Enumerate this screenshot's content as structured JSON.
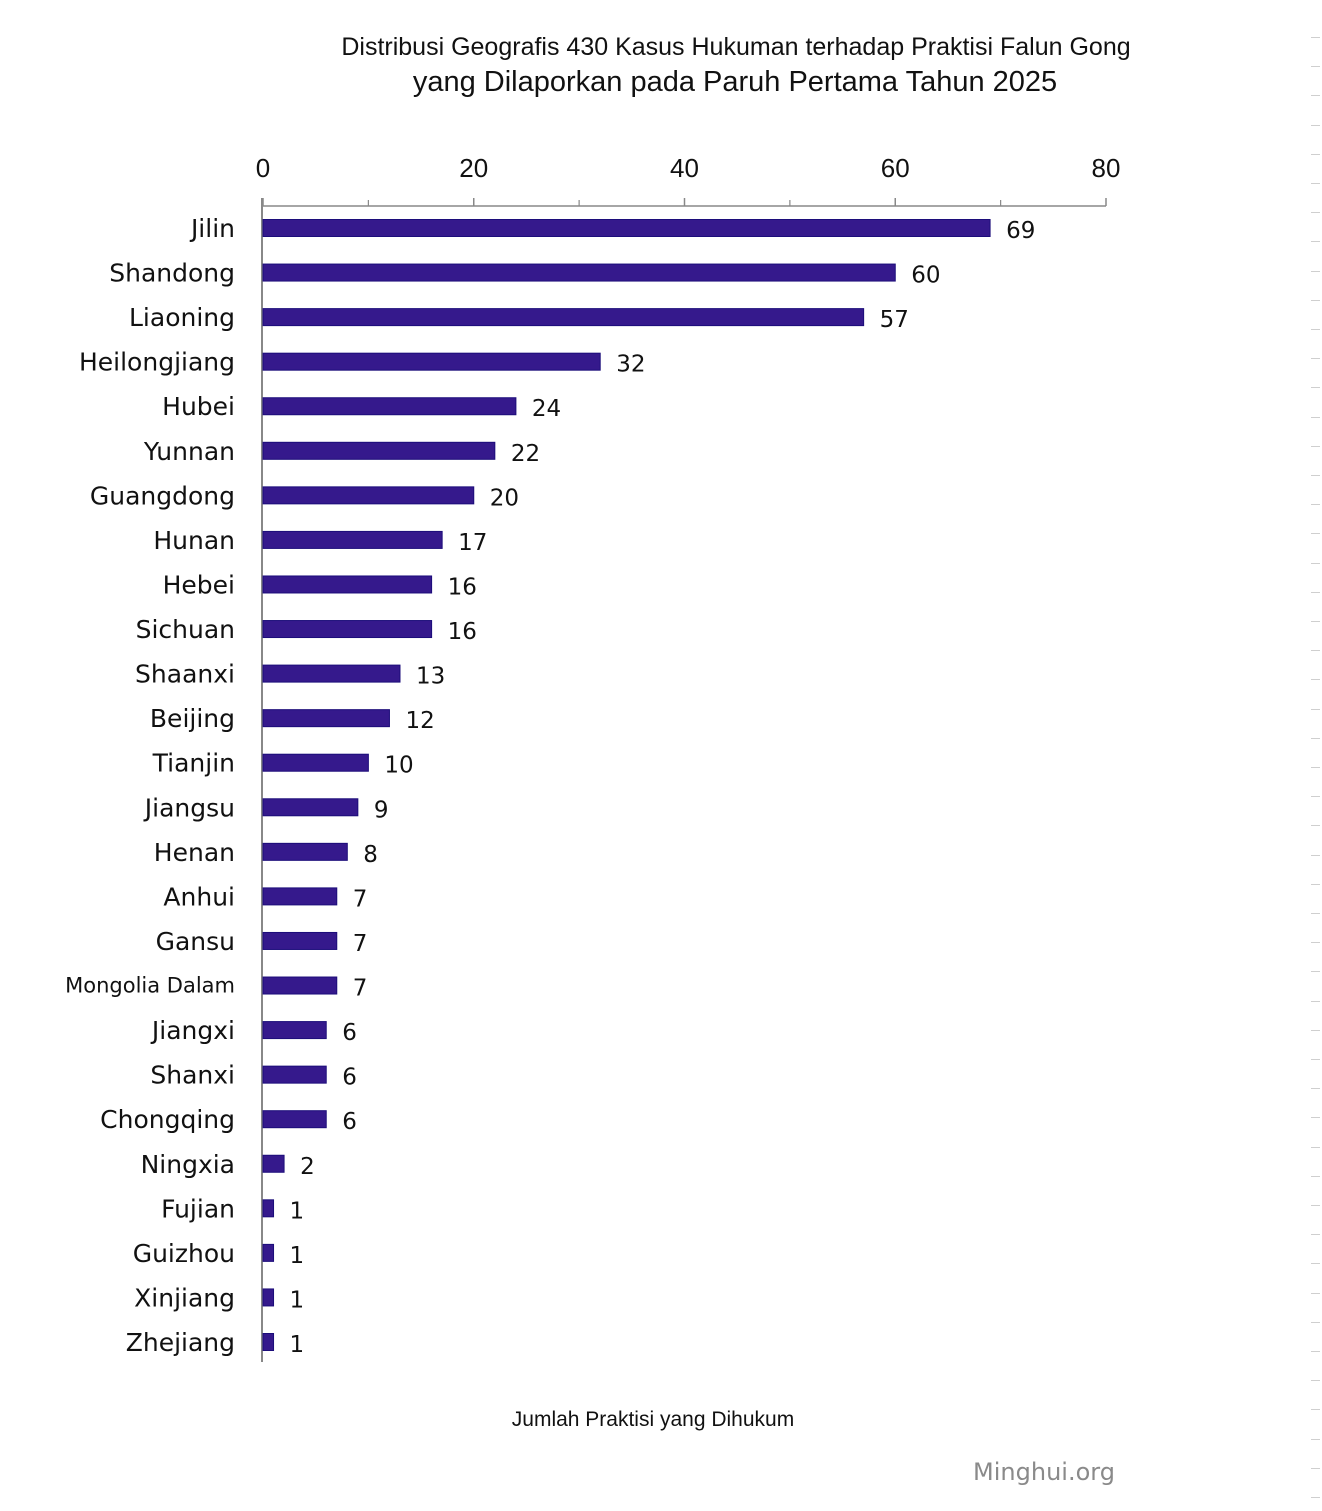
{
  "title_line1": "Distribusi Geografis 430 Kasus Hukuman terhadap Praktisi Falun Gong",
  "title_line2": "yang Dilaporkan pada Paruh Pertama Tahun 2025",
  "watermark": "Minghui.org",
  "colors": {
    "bar": "#35198c",
    "bar_edge": "#1c0d7a",
    "axis": "#888888",
    "text": "#111111"
  },
  "chart_data": {
    "type": "bar",
    "orientation": "horizontal",
    "title": "Distribusi Geografis 430 Kasus Hukuman terhadap Praktisi Falun Gong yang Dilaporkan pada Paruh Pertama Tahun 2025",
    "xlabel": "Jumlah Praktisi yang Dihukum",
    "ylabel": "",
    "xlim": [
      0,
      80
    ],
    "x_ticks": [
      0,
      20,
      40,
      60,
      80
    ],
    "x_minor_ticks": [
      10,
      30,
      50,
      70
    ],
    "x_axis_position": "top",
    "grid": false,
    "legend": "none",
    "data_labels": true,
    "categories": [
      "Jilin",
      "Shandong",
      "Liaoning",
      "Heilongjiang",
      "Hubei",
      "Yunnan",
      "Guangdong",
      "Hunan",
      "Hebei",
      "Sichuan",
      "Shaanxi",
      "Beijing",
      "Tianjin",
      "Jiangsu",
      "Henan",
      "Anhui",
      "Gansu",
      "Mongolia Dalam",
      "Jiangxi",
      "Shanxi",
      "Chongqing",
      "Ningxia",
      "Fujian",
      "Guizhou",
      "Xinjiang",
      "Zhejiang"
    ],
    "values": [
      69,
      60,
      57,
      32,
      24,
      22,
      20,
      17,
      16,
      16,
      13,
      12,
      10,
      9,
      8,
      7,
      7,
      7,
      6,
      6,
      6,
      2,
      1,
      1,
      1,
      1
    ]
  }
}
